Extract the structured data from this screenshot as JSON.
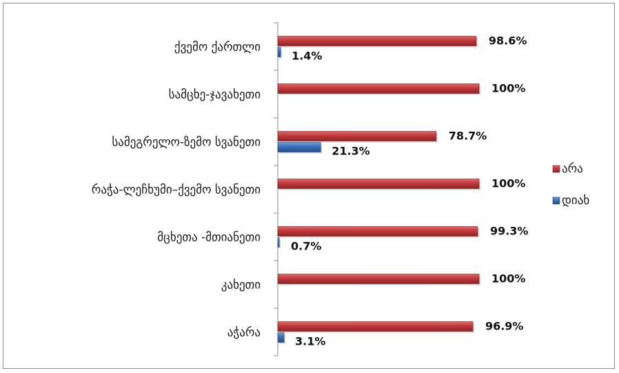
{
  "chart_data": {
    "type": "bar",
    "orientation": "horizontal",
    "categories": [
      "ქვემო ქართლი",
      "სამცხე-ჯავახეთი",
      "სამეგრელო-ზემო სვანეთი",
      "რაჭა-ლეჩხუმი–ქვემო სვანეთი",
      "მცხეთა -მთიანეთი",
      "კახეთი",
      "აჭარა"
    ],
    "series": [
      {
        "name": "არა",
        "color": "#c0393b",
        "values": [
          98.6,
          100,
          78.7,
          100,
          99.3,
          100,
          96.9
        ],
        "labels": [
          "98.6%",
          "100%",
          "78.7%",
          "100%",
          "99.3%",
          "100%",
          "96.9%"
        ]
      },
      {
        "name": "დიახ",
        "color": "#3a6fb5",
        "values": [
          1.4,
          0,
          21.3,
          0,
          0.7,
          0,
          3.1
        ],
        "labels": [
          "1.4%",
          "",
          "21.3%",
          "",
          "0.7%",
          "",
          "3.1%"
        ]
      }
    ],
    "xlim": [
      0,
      100
    ],
    "grid": false,
    "legend": "right"
  }
}
